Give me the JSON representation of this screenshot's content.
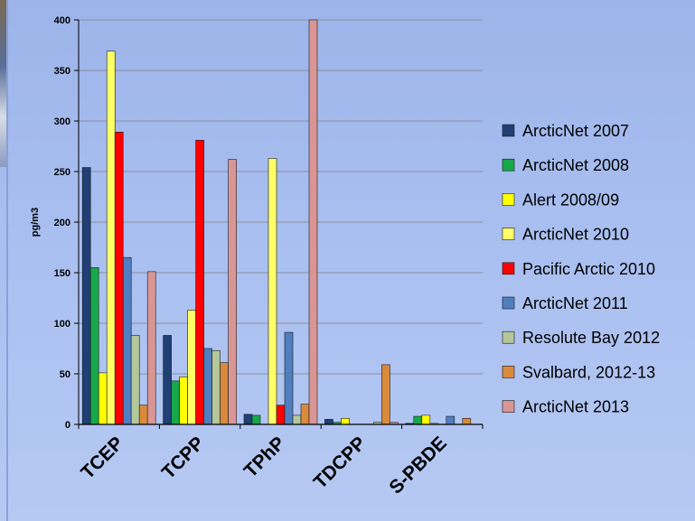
{
  "chart_data": {
    "type": "bar",
    "title": "",
    "xlabel": "",
    "ylabel": "pg/m3",
    "ylim": [
      0,
      400
    ],
    "yticks": [
      0,
      50,
      100,
      150,
      200,
      250,
      300,
      350,
      400
    ],
    "grid": true,
    "legend_position": "right",
    "categories": [
      "TCEP",
      "TCPP",
      "TPhP",
      "TDCPP",
      "S-PBDE"
    ],
    "series": [
      {
        "name": "ArcticNet 2007",
        "color": "#1f3f75",
        "values": [
          254,
          88,
          10,
          5,
          1
        ]
      },
      {
        "name": "ArcticNet 2008",
        "color": "#17a84a",
        "values": [
          155,
          43,
          9,
          2,
          8
        ]
      },
      {
        "name": "Alert 2008/09",
        "color": "#ffff00",
        "values": [
          51,
          47,
          0,
          6,
          9
        ]
      },
      {
        "name": "ArcticNet 2010",
        "color": "#ffff66",
        "values": [
          369,
          113,
          263,
          0,
          1
        ]
      },
      {
        "name": "Pacific Arctic 2010",
        "color": "#ff0000",
        "values": [
          289,
          281,
          19,
          0,
          0
        ]
      },
      {
        "name": "ArcticNet 2011",
        "color": "#4f7fc0",
        "values": [
          165,
          75,
          91,
          0,
          8
        ]
      },
      {
        "name": "Resolute Bay 2012",
        "color": "#b4c79a",
        "values": [
          88,
          73,
          9,
          2,
          0
        ]
      },
      {
        "name": "Svalbard, 2012-13",
        "color": "#d98a3c",
        "values": [
          19,
          61,
          20,
          59,
          6
        ]
      },
      {
        "name": "ArcticNet 2013",
        "color": "#d99694",
        "values": [
          151,
          262,
          400,
          2,
          0
        ]
      }
    ]
  }
}
